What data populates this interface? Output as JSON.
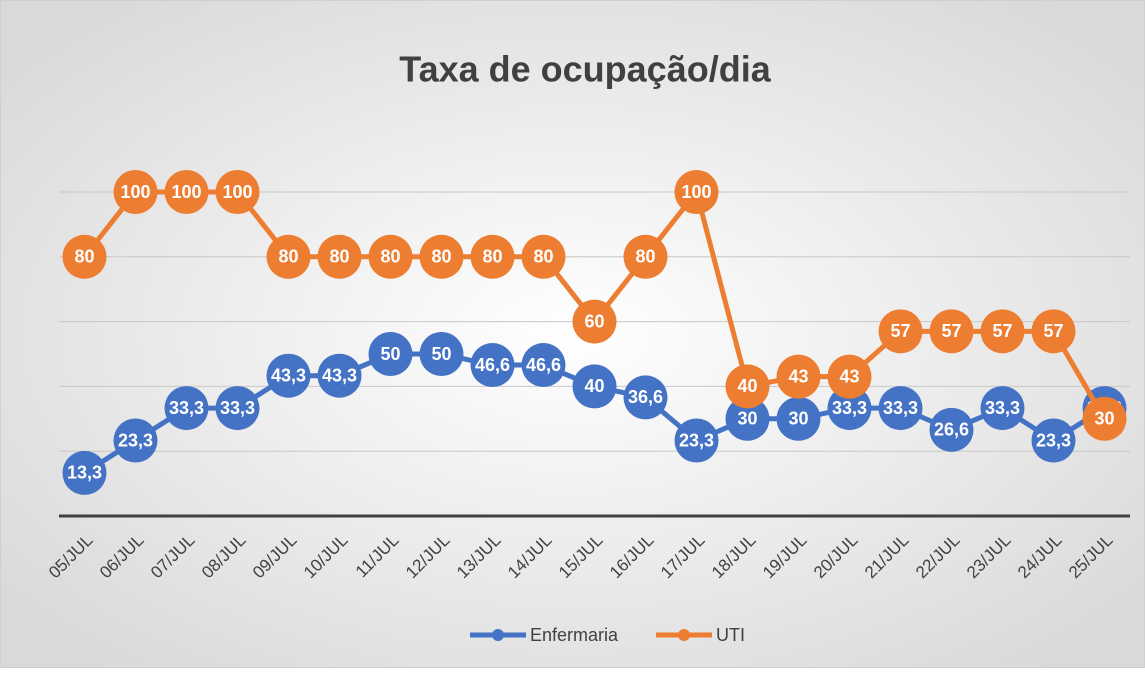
{
  "chart_data": {
    "type": "line",
    "title": "Taxa de ocupação/dia",
    "categories": [
      "05/JUL",
      "06/JUL",
      "07/JUL",
      "08/JUL",
      "09/JUL",
      "10/JUL",
      "11/JUL",
      "12/JUL",
      "13/JUL",
      "14/JUL",
      "15/JUL",
      "16/JUL",
      "17/JUL",
      "18/JUL",
      "19/JUL",
      "20/JUL",
      "21/JUL",
      "22/JUL",
      "23/JUL",
      "24/JUL",
      "25/JUL"
    ],
    "series": [
      {
        "name": "Enfermaria",
        "color": "#4472c4",
        "values": [
          13.3,
          23.3,
          33.3,
          33.3,
          43.3,
          43.3,
          50,
          50,
          46.6,
          46.6,
          40,
          36.6,
          23.3,
          30,
          30,
          33.3,
          33.3,
          26.6,
          33.3,
          23.3,
          33.3
        ],
        "value_labels": [
          "13,3",
          "23,3",
          "33,3",
          "33,3",
          "43,3",
          "43,3",
          "50",
          "50",
          "46,6",
          "46,6",
          "40",
          "36,6",
          "23,3",
          "30",
          "30",
          "33,3",
          "33,3",
          "26,6",
          "33,3",
          "23,3",
          "33,3"
        ]
      },
      {
        "name": "UTI",
        "color": "#ed7d31",
        "values": [
          80,
          100,
          100,
          100,
          80,
          80,
          80,
          80,
          80,
          80,
          60,
          80,
          100,
          40,
          43,
          43,
          57,
          57,
          57,
          57,
          30
        ]
      }
    ],
    "ylim": [
      0,
      100
    ],
    "yticks": [
      0,
      20,
      40,
      60,
      80,
      100
    ],
    "grid": true,
    "legend": "bottom"
  }
}
